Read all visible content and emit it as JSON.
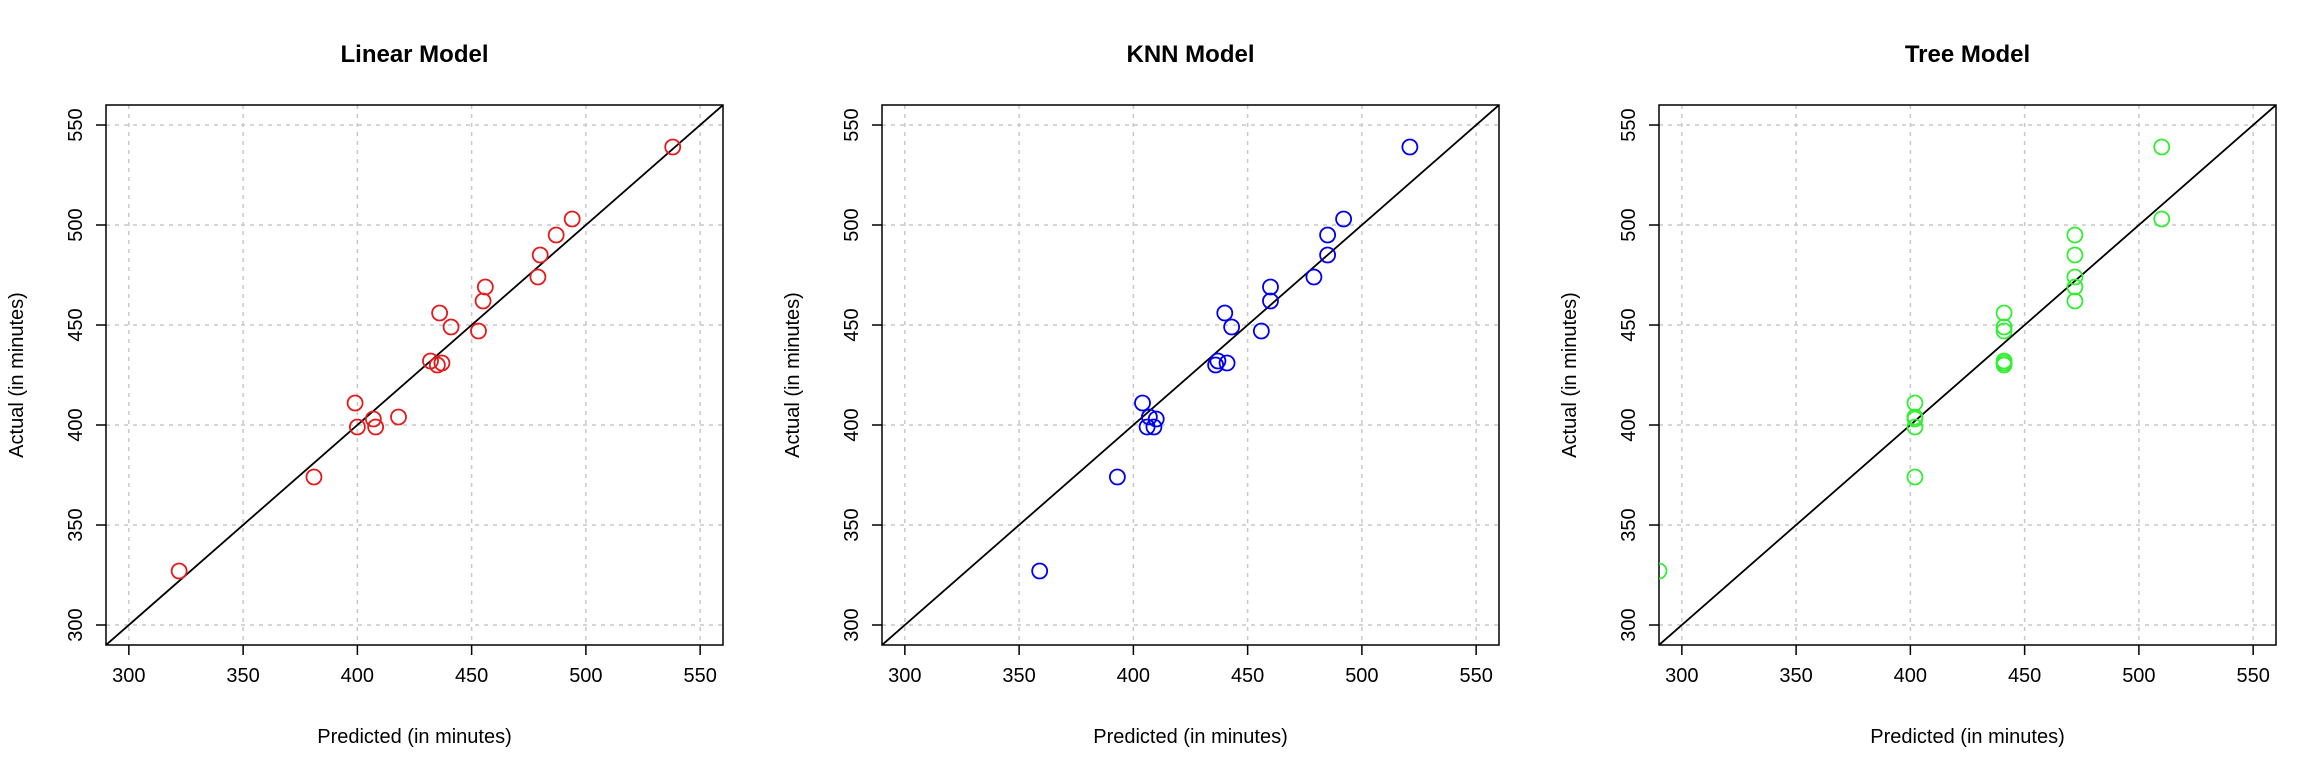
{
  "chart_data": [
    {
      "type": "scatter",
      "title": "Linear Model",
      "xlabel": "Predicted (in minutes)",
      "ylabel": "Actual (in minutes)",
      "xlim": [
        290,
        560
      ],
      "ylim": [
        290,
        560
      ],
      "xticks": [
        "300",
        "350",
        "400",
        "450",
        "500",
        "550"
      ],
      "yticks": [
        "300",
        "350",
        "400",
        "450",
        "500",
        "550"
      ],
      "grid": true,
      "reference_line": "y = x",
      "color": "#e41a1c",
      "points": [
        {
          "x": 322,
          "y": 327
        },
        {
          "x": 381,
          "y": 374
        },
        {
          "x": 399,
          "y": 411
        },
        {
          "x": 400,
          "y": 399
        },
        {
          "x": 407,
          "y": 403
        },
        {
          "x": 408,
          "y": 399
        },
        {
          "x": 418,
          "y": 404
        },
        {
          "x": 432,
          "y": 432
        },
        {
          "x": 435,
          "y": 430
        },
        {
          "x": 437,
          "y": 431
        },
        {
          "x": 436,
          "y": 456
        },
        {
          "x": 441,
          "y": 449
        },
        {
          "x": 453,
          "y": 447
        },
        {
          "x": 455,
          "y": 462
        },
        {
          "x": 456,
          "y": 469
        },
        {
          "x": 479,
          "y": 474
        },
        {
          "x": 480,
          "y": 485
        },
        {
          "x": 487,
          "y": 495
        },
        {
          "x": 494,
          "y": 503
        },
        {
          "x": 538,
          "y": 539
        }
      ]
    },
    {
      "type": "scatter",
      "title": "KNN Model",
      "xlabel": "Predicted (in minutes)",
      "ylabel": "Actual (in minutes)",
      "xlim": [
        290,
        560
      ],
      "ylim": [
        290,
        560
      ],
      "xticks": [
        "300",
        "350",
        "400",
        "450",
        "500",
        "550"
      ],
      "yticks": [
        "300",
        "350",
        "400",
        "450",
        "500",
        "550"
      ],
      "grid": true,
      "reference_line": "y = x",
      "color": "#0000ee",
      "points": [
        {
          "x": 359,
          "y": 327
        },
        {
          "x": 393,
          "y": 374
        },
        {
          "x": 404,
          "y": 411
        },
        {
          "x": 406,
          "y": 399
        },
        {
          "x": 407,
          "y": 404
        },
        {
          "x": 409,
          "y": 399
        },
        {
          "x": 410,
          "y": 403
        },
        {
          "x": 436,
          "y": 430
        },
        {
          "x": 437,
          "y": 432
        },
        {
          "x": 441,
          "y": 431
        },
        {
          "x": 440,
          "y": 456
        },
        {
          "x": 443,
          "y": 449
        },
        {
          "x": 456,
          "y": 447
        },
        {
          "x": 460,
          "y": 462
        },
        {
          "x": 460,
          "y": 469
        },
        {
          "x": 479,
          "y": 474
        },
        {
          "x": 485,
          "y": 485
        },
        {
          "x": 485,
          "y": 495
        },
        {
          "x": 492,
          "y": 503
        },
        {
          "x": 521,
          "y": 539
        }
      ]
    },
    {
      "type": "scatter",
      "title": "Tree Model",
      "xlabel": "Predicted (in minutes)",
      "ylabel": "Actual (in minutes)",
      "xlim": [
        290,
        560
      ],
      "ylim": [
        290,
        560
      ],
      "xticks": [
        "300",
        "350",
        "400",
        "450",
        "500",
        "550"
      ],
      "yticks": [
        "300",
        "350",
        "400",
        "450",
        "500",
        "550"
      ],
      "grid": true,
      "reference_line": "y = x",
      "color": "#33ee33",
      "points": [
        {
          "x": 290,
          "y": 327
        },
        {
          "x": 402,
          "y": 374
        },
        {
          "x": 402,
          "y": 399
        },
        {
          "x": 402,
          "y": 403
        },
        {
          "x": 402,
          "y": 404
        },
        {
          "x": 402,
          "y": 411
        },
        {
          "x": 441,
          "y": 430
        },
        {
          "x": 441,
          "y": 431
        },
        {
          "x": 441,
          "y": 432
        },
        {
          "x": 441,
          "y": 447
        },
        {
          "x": 441,
          "y": 449
        },
        {
          "x": 441,
          "y": 456
        },
        {
          "x": 472,
          "y": 462
        },
        {
          "x": 472,
          "y": 469
        },
        {
          "x": 472,
          "y": 474
        },
        {
          "x": 472,
          "y": 485
        },
        {
          "x": 472,
          "y": 495
        },
        {
          "x": 510,
          "y": 503
        },
        {
          "x": 510,
          "y": 539
        }
      ]
    }
  ]
}
